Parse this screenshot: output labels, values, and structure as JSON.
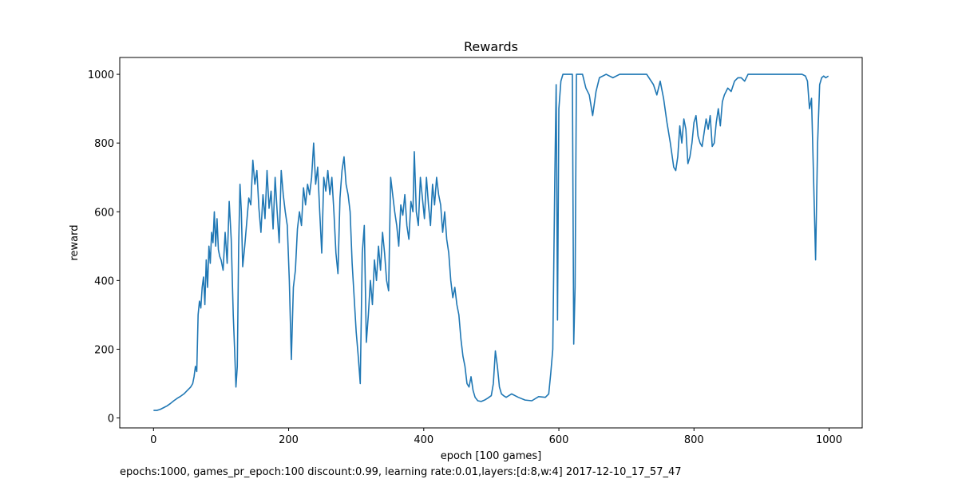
{
  "chart_data": {
    "type": "line",
    "title": "Rewards",
    "xlabel": "epoch [100 games]",
    "ylabel": "reward",
    "caption": "epochs:1000, games_pr_epoch:100 discount:0.99, learning rate:0.01,layers:[d:8,w:4] 2017-12-10_17_57_47",
    "xlim": [
      -50,
      1049
    ],
    "ylim": [
      -29,
      1049
    ],
    "xticks": [
      0,
      200,
      400,
      600,
      800,
      1000
    ],
    "yticks": [
      0,
      200,
      400,
      600,
      800,
      1000
    ],
    "grid": false,
    "series": [
      {
        "color": "#1f77b4",
        "x": [
          0,
          5,
          10,
          15,
          20,
          25,
          30,
          35,
          40,
          45,
          50,
          55,
          58,
          60,
          62,
          64,
          66,
          68,
          70,
          72,
          74,
          76,
          78,
          80,
          82,
          84,
          86,
          88,
          90,
          92,
          94,
          96,
          98,
          100,
          103,
          106,
          109,
          112,
          115,
          118,
          120,
          122,
          124,
          126,
          128,
          130,
          132,
          135,
          138,
          141,
          144,
          147,
          150,
          153,
          156,
          159,
          162,
          165,
          168,
          171,
          174,
          177,
          180,
          183,
          186,
          189,
          192,
          195,
          198,
          201,
          204,
          207,
          210,
          213,
          216,
          219,
          222,
          225,
          228,
          231,
          234,
          237,
          240,
          243,
          246,
          249,
          252,
          255,
          258,
          261,
          264,
          267,
          270,
          273,
          276,
          279,
          282,
          285,
          288,
          291,
          294,
          297,
          300,
          303,
          306,
          309,
          312,
          315,
          318,
          321,
          324,
          327,
          330,
          333,
          336,
          339,
          342,
          345,
          348,
          351,
          354,
          357,
          360,
          363,
          366,
          369,
          372,
          375,
          378,
          381,
          384,
          386,
          389,
          392,
          395,
          398,
          401,
          404,
          407,
          410,
          413,
          416,
          419,
          422,
          425,
          428,
          431,
          434,
          437,
          440,
          443,
          446,
          449,
          452,
          455,
          458,
          461,
          464,
          467,
          470,
          473,
          476,
          480,
          485,
          490,
          495,
          500,
          503,
          506,
          509,
          512,
          515,
          518,
          522,
          530,
          540,
          550,
          560,
          570,
          580,
          585,
          588,
          591,
          594,
          596,
          598,
          600,
          603,
          606,
          610,
          615,
          620,
          622,
          624,
          626,
          630,
          635,
          640,
          645,
          650,
          655,
          660,
          670,
          680,
          690,
          700,
          710,
          720,
          730,
          740,
          745,
          750,
          755,
          760,
          765,
          770,
          773,
          776,
          779,
          782,
          785,
          788,
          791,
          794,
          797,
          800,
          803,
          806,
          809,
          812,
          815,
          818,
          821,
          824,
          827,
          830,
          833,
          836,
          839,
          842,
          845,
          850,
          855,
          860,
          865,
          870,
          875,
          880,
          890,
          900,
          920,
          940,
          960,
          965,
          968,
          971,
          974,
          977,
          980,
          983,
          986,
          989,
          992,
          995,
          999
        ],
        "values": [
          22,
          22,
          25,
          30,
          35,
          42,
          50,
          57,
          63,
          70,
          80,
          90,
          100,
          120,
          150,
          135,
          300,
          340,
          320,
          380,
          410,
          330,
          460,
          380,
          500,
          450,
          540,
          510,
          600,
          500,
          580,
          490,
          470,
          460,
          430,
          540,
          450,
          630,
          520,
          300,
          200,
          90,
          150,
          500,
          680,
          600,
          440,
          500,
          570,
          640,
          620,
          750,
          680,
          720,
          610,
          540,
          650,
          580,
          720,
          610,
          660,
          550,
          700,
          600,
          510,
          720,
          650,
          600,
          560,
          400,
          170,
          380,
          430,
          550,
          600,
          560,
          670,
          620,
          680,
          650,
          700,
          800,
          680,
          730,
          600,
          480,
          700,
          660,
          720,
          650,
          700,
          600,
          480,
          420,
          640,
          720,
          760,
          680,
          650,
          600,
          450,
          350,
          250,
          180,
          100,
          480,
          560,
          220,
          300,
          400,
          330,
          460,
          400,
          500,
          430,
          540,
          480,
          400,
          370,
          700,
          650,
          600,
          560,
          500,
          620,
          590,
          650,
          560,
          520,
          630,
          600,
          775,
          600,
          560,
          700,
          640,
          580,
          700,
          620,
          560,
          680,
          620,
          700,
          650,
          620,
          540,
          600,
          520,
          480,
          400,
          350,
          380,
          330,
          300,
          230,
          180,
          150,
          100,
          90,
          120,
          80,
          60,
          50,
          48,
          52,
          58,
          65,
          100,
          195,
          150,
          90,
          70,
          65,
          60,
          70,
          60,
          52,
          50,
          62,
          60,
          70,
          130,
          200,
          700,
          970,
          285,
          900,
          980,
          1000,
          1000,
          1000,
          1000,
          215,
          380,
          1000,
          1000,
          1000,
          960,
          940,
          880,
          950,
          990,
          1000,
          990,
          1000,
          1000,
          1000,
          1000,
          1000,
          970,
          940,
          980,
          930,
          860,
          800,
          730,
          720,
          760,
          850,
          800,
          870,
          840,
          740,
          760,
          800,
          860,
          880,
          820,
          800,
          790,
          830,
          870,
          840,
          880,
          790,
          800,
          860,
          900,
          850,
          920,
          940,
          960,
          950,
          980,
          990,
          990,
          980,
          1000,
          1000,
          1000,
          1000,
          1000,
          1000,
          995,
          980,
          900,
          930,
          700,
          460,
          800,
          970,
          990,
          995,
          990,
          995
        ]
      }
    ]
  }
}
